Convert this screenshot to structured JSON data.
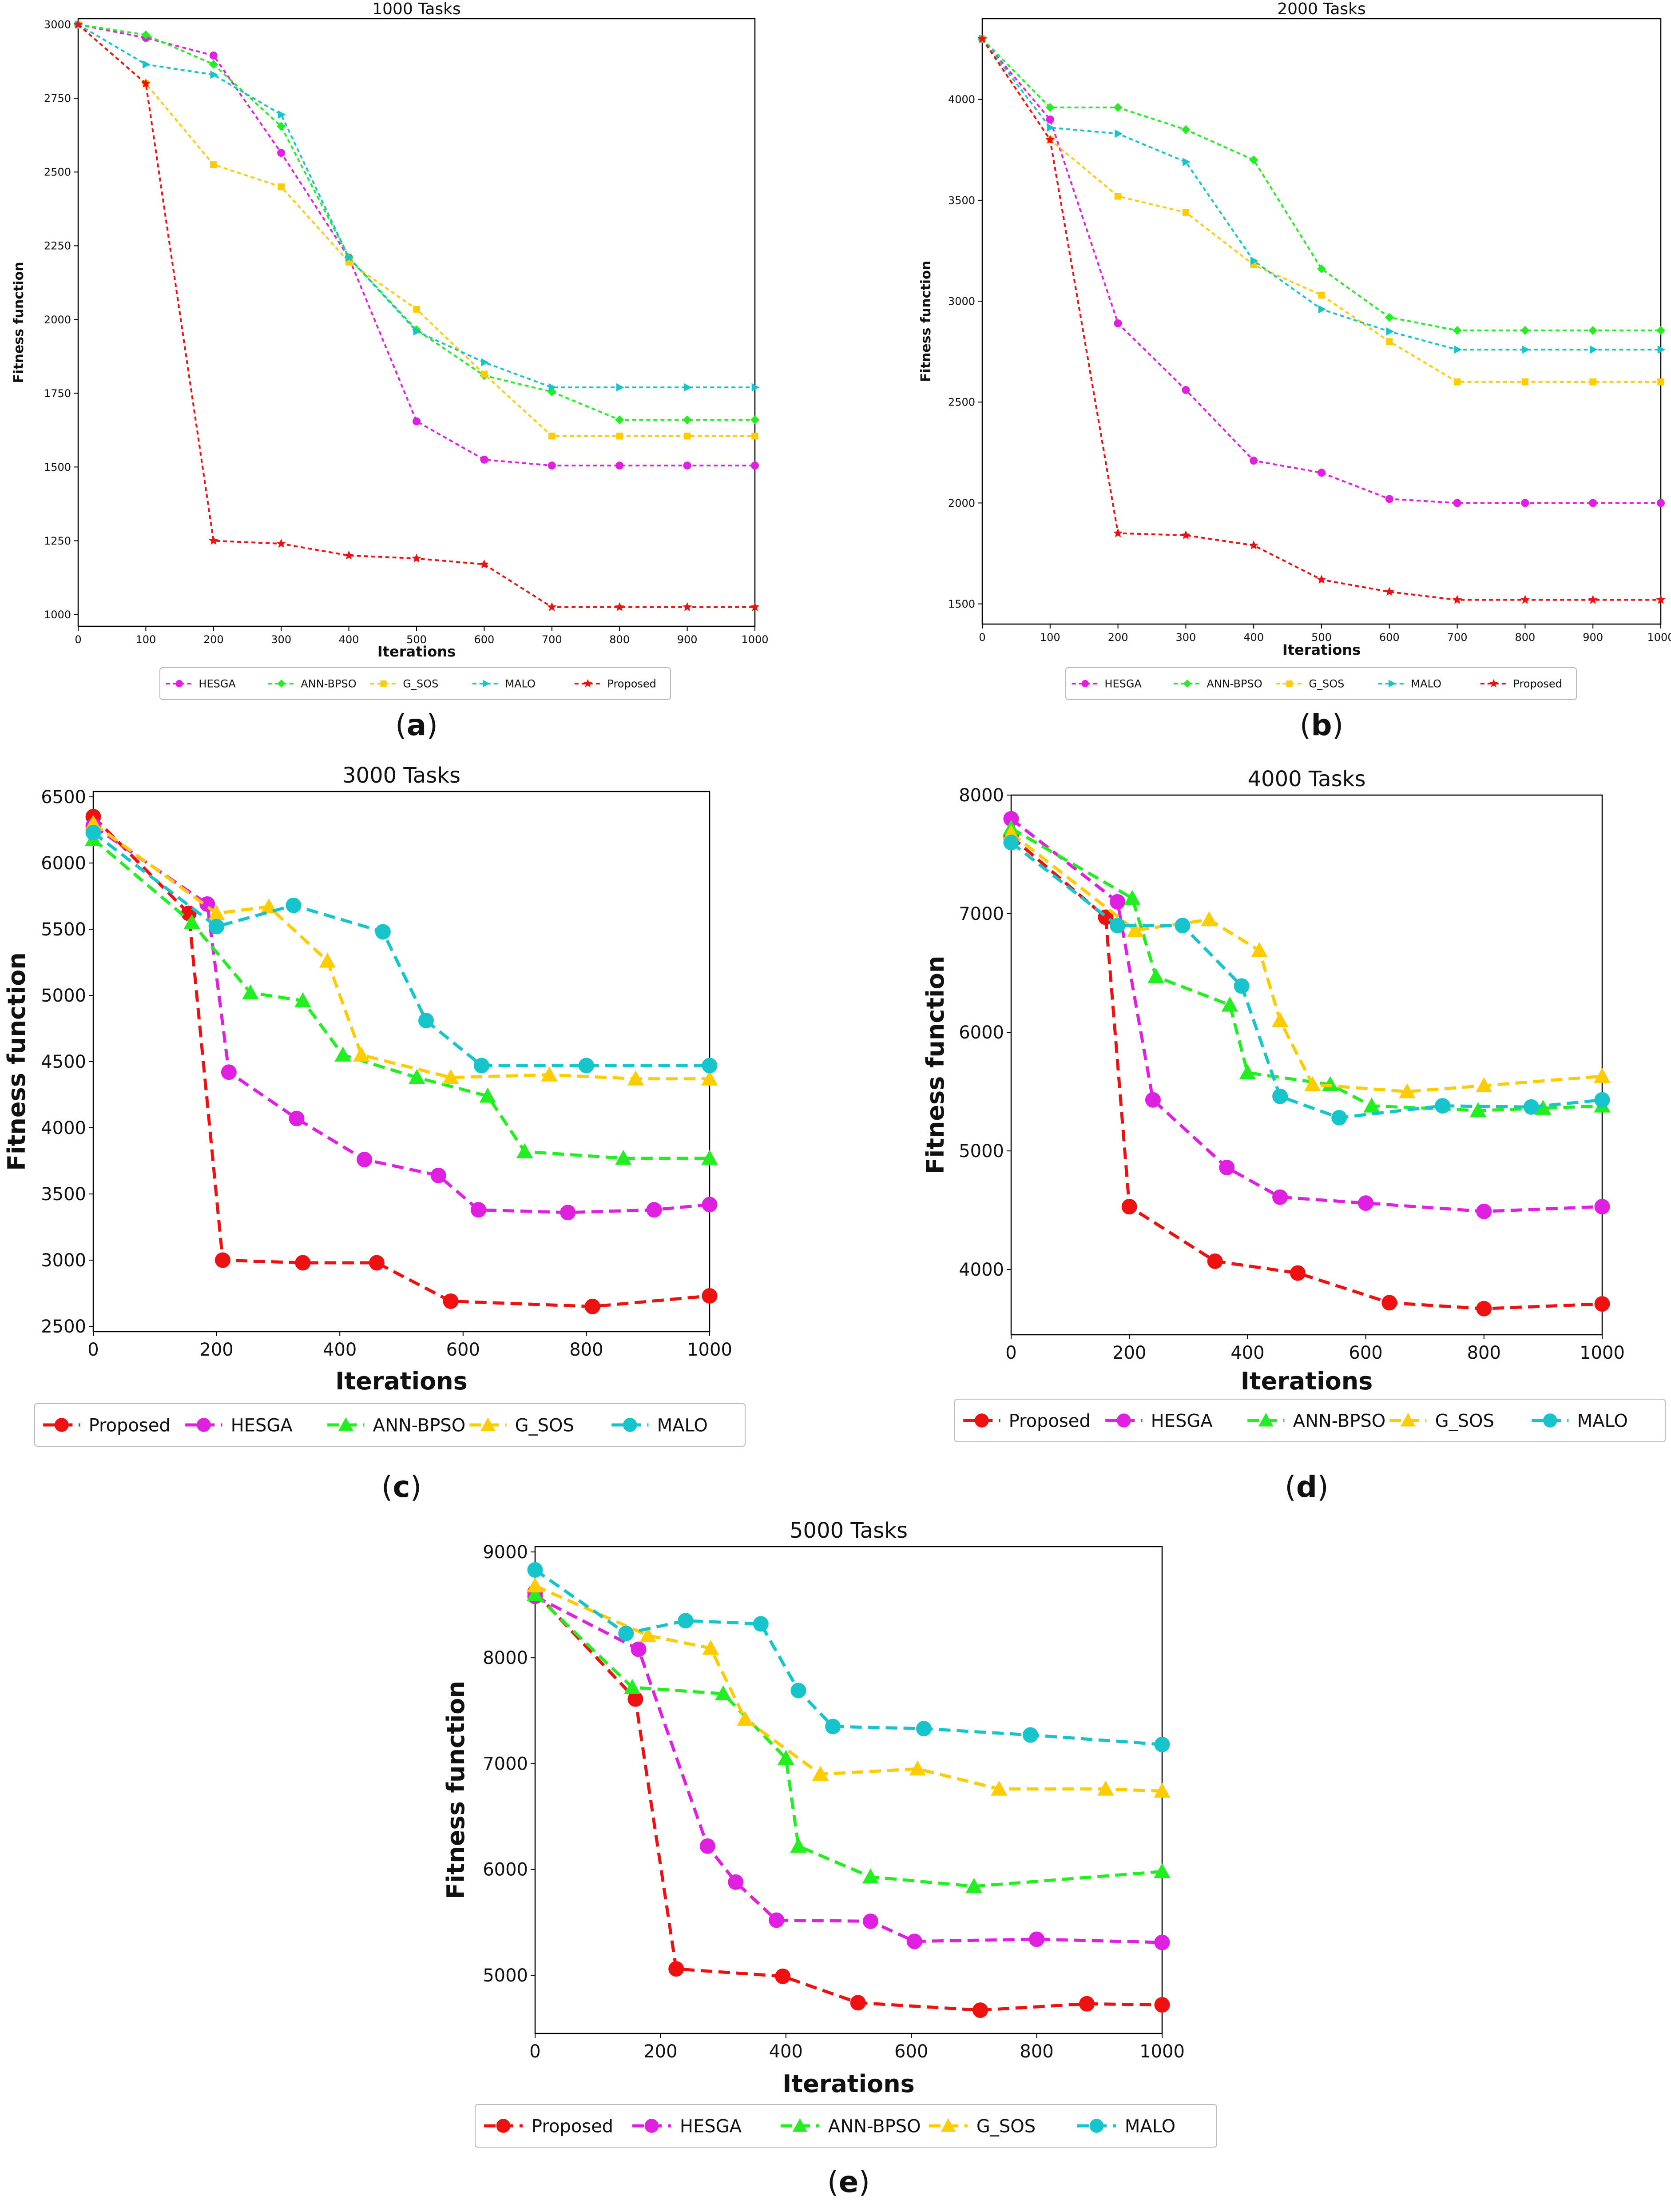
{
  "figure": {
    "colors": {
      "HESGA": "#e020e0",
      "ANN-BPSO": "#22ee22",
      "G_SOS": "#ffcc00",
      "MALO": "#17c4cc",
      "Proposed": "#ee1111"
    },
    "panels": [
      {
        "letter": "a",
        "open": "(",
        "close": ")"
      },
      {
        "letter": "b",
        "open": "(",
        "close": ")"
      },
      {
        "letter": "c",
        "open": "(",
        "close": ")"
      },
      {
        "letter": "d",
        "open": "(",
        "close": ")"
      },
      {
        "letter": "e",
        "open": "(",
        "close": ")"
      }
    ]
  },
  "chart_data": [
    {
      "type": "line",
      "title": "1000 Tasks",
      "xlabel": "Iterations",
      "ylabel": "Fitness function",
      "xlim": [
        0,
        1000
      ],
      "ylim": [
        960,
        3020
      ],
      "xticks": [
        0,
        100,
        200,
        300,
        400,
        500,
        600,
        700,
        800,
        900,
        1000
      ],
      "yticks": [
        1000,
        1250,
        1500,
        1750,
        2000,
        2250,
        2500,
        2750,
        3000
      ],
      "legend_order": [
        "HESGA",
        "ANN-BPSO",
        "G_SOS",
        "MALO",
        "Proposed"
      ],
      "series": [
        {
          "name": "HESGA",
          "marker": "circle",
          "x": [
            0,
            100,
            200,
            300,
            400,
            500,
            600,
            700,
            800,
            900,
            1000
          ],
          "y": [
            3000,
            2955,
            2895,
            2565,
            2210,
            1655,
            1525,
            1505,
            1505,
            1505,
            1505
          ]
        },
        {
          "name": "ANN-BPSO",
          "marker": "diamond",
          "x": [
            0,
            100,
            200,
            300,
            400,
            500,
            600,
            700,
            800,
            900,
            1000
          ],
          "y": [
            3000,
            2965,
            2865,
            2655,
            2210,
            1965,
            1810,
            1755,
            1660,
            1660,
            1660
          ]
        },
        {
          "name": "G_SOS",
          "marker": "square",
          "x": [
            0,
            100,
            200,
            300,
            400,
            500,
            600,
            700,
            800,
            900,
            1000
          ],
          "y": [
            3000,
            2800,
            2525,
            2450,
            2195,
            2035,
            1815,
            1605,
            1605,
            1605,
            1605
          ]
        },
        {
          "name": "MALO",
          "marker": "triangle-right",
          "x": [
            0,
            100,
            200,
            300,
            400,
            500,
            600,
            700,
            800,
            900,
            1000
          ],
          "y": [
            3000,
            2865,
            2830,
            2695,
            2210,
            1960,
            1855,
            1770,
            1770,
            1770,
            1770
          ]
        },
        {
          "name": "Proposed",
          "marker": "star",
          "x": [
            0,
            100,
            200,
            300,
            400,
            500,
            600,
            700,
            800,
            900,
            1000
          ],
          "y": [
            3000,
            2800,
            1250,
            1240,
            1200,
            1190,
            1170,
            1025,
            1025,
            1025,
            1025
          ]
        }
      ]
    },
    {
      "type": "line",
      "title": "2000 Tasks",
      "xlabel": "Iterations",
      "ylabel": "Fitness function",
      "xlim": [
        0,
        1000
      ],
      "ylim": [
        1400,
        4400
      ],
      "xticks": [
        0,
        100,
        200,
        300,
        400,
        500,
        600,
        700,
        800,
        900,
        1000
      ],
      "yticks": [
        1500,
        2000,
        2500,
        3000,
        3500,
        4000
      ],
      "legend_order": [
        "HESGA",
        "ANN-BPSO",
        "G_SOS",
        "MALO",
        "Proposed"
      ],
      "series": [
        {
          "name": "HESGA",
          "marker": "circle",
          "x": [
            0,
            100,
            200,
            300,
            400,
            500,
            600,
            700,
            800,
            900,
            1000
          ],
          "y": [
            4300,
            3900,
            2890,
            2560,
            2210,
            2150,
            2020,
            2000,
            2000,
            2000,
            2000
          ]
        },
        {
          "name": "ANN-BPSO",
          "marker": "diamond",
          "x": [
            0,
            100,
            200,
            300,
            400,
            500,
            600,
            700,
            800,
            900,
            1000
          ],
          "y": [
            4300,
            3960,
            3960,
            3850,
            3700,
            3160,
            2920,
            2855,
            2855,
            2855,
            2855
          ]
        },
        {
          "name": "G_SOS",
          "marker": "square",
          "x": [
            0,
            100,
            200,
            300,
            400,
            500,
            600,
            700,
            800,
            900,
            1000
          ],
          "y": [
            4300,
            3800,
            3520,
            3440,
            3180,
            3030,
            2800,
            2600,
            2600,
            2600,
            2600
          ]
        },
        {
          "name": "MALO",
          "marker": "triangle-right",
          "x": [
            0,
            100,
            200,
            300,
            400,
            500,
            600,
            700,
            800,
            900,
            1000
          ],
          "y": [
            4300,
            3860,
            3830,
            3690,
            3200,
            2960,
            2850,
            2760,
            2760,
            2760,
            2760
          ]
        },
        {
          "name": "Proposed",
          "marker": "star",
          "x": [
            0,
            100,
            200,
            300,
            400,
            500,
            600,
            700,
            800,
            900,
            1000
          ],
          "y": [
            4300,
            3800,
            1850,
            1840,
            1790,
            1620,
            1560,
            1520,
            1520,
            1520,
            1520
          ]
        }
      ]
    },
    {
      "type": "line",
      "title": "3000 Tasks",
      "xlabel": "Iterations",
      "ylabel": "Fitness function",
      "xlim": [
        0,
        1000
      ],
      "ylim": [
        2460,
        6540
      ],
      "xticks": [
        0,
        200,
        400,
        600,
        800,
        1000
      ],
      "yticks": [
        2500,
        3000,
        3500,
        4000,
        4500,
        5000,
        5500,
        6000,
        6500
      ],
      "legend_order": [
        "Proposed",
        "HESGA",
        "ANN-BPSO",
        "G_SOS",
        "MALO"
      ],
      "series": [
        {
          "name": "Proposed",
          "marker": "circle",
          "x": [
            0,
            155,
            210,
            340,
            460,
            580,
            810,
            1000
          ],
          "y": [
            6350,
            5620,
            3000,
            2980,
            2980,
            2690,
            2650,
            2730
          ]
        },
        {
          "name": "HESGA",
          "marker": "circle",
          "x": [
            0,
            185,
            220,
            330,
            440,
            560,
            625,
            770,
            910,
            1000
          ],
          "y": [
            6280,
            5690,
            4420,
            4070,
            3760,
            3640,
            3380,
            3360,
            3380,
            3420
          ]
        },
        {
          "name": "ANN-BPSO",
          "marker": "triangle",
          "x": [
            0,
            160,
            255,
            340,
            405,
            525,
            640,
            700,
            860,
            1000
          ],
          "y": [
            6180,
            5550,
            5020,
            4960,
            4550,
            4380,
            4240,
            3820,
            3770,
            3770
          ]
        },
        {
          "name": "G_SOS",
          "marker": "triangle",
          "x": [
            0,
            200,
            285,
            380,
            435,
            580,
            740,
            880,
            1000
          ],
          "y": [
            6300,
            5620,
            5670,
            5260,
            4550,
            4380,
            4400,
            4370,
            4370
          ]
        },
        {
          "name": "MALO",
          "marker": "circle",
          "x": [
            0,
            200,
            325,
            470,
            540,
            630,
            800,
            1000
          ],
          "y": [
            6230,
            5520,
            5680,
            5480,
            4810,
            4470,
            4470,
            4470
          ]
        }
      ]
    },
    {
      "type": "line",
      "title": "4000 Tasks",
      "xlabel": "Iterations",
      "ylabel": "Fitness function",
      "xlim": [
        0,
        1000
      ],
      "ylim": [
        3450,
        8000
      ],
      "xticks": [
        0,
        200,
        400,
        600,
        800,
        1000
      ],
      "yticks": [
        4000,
        5000,
        6000,
        7000,
        8000
      ],
      "legend_order": [
        "Proposed",
        "HESGA",
        "ANN-BPSO",
        "G_SOS",
        "MALO"
      ],
      "series": [
        {
          "name": "Proposed",
          "marker": "circle",
          "x": [
            0,
            160,
            200,
            345,
            485,
            640,
            800,
            1000
          ],
          "y": [
            7650,
            6970,
            4530,
            4070,
            3970,
            3720,
            3670,
            3710
          ]
        },
        {
          "name": "HESGA",
          "marker": "circle",
          "x": [
            0,
            180,
            240,
            365,
            455,
            600,
            800,
            1000
          ],
          "y": [
            7800,
            7100,
            5430,
            4860,
            4610,
            4560,
            4490,
            4530
          ]
        },
        {
          "name": "ANN-BPSO",
          "marker": "triangle",
          "x": [
            0,
            205,
            245,
            370,
            400,
            540,
            610,
            790,
            900,
            1000
          ],
          "y": [
            7720,
            7130,
            6470,
            6230,
            5660,
            5560,
            5380,
            5340,
            5360,
            5380
          ]
        },
        {
          "name": "G_SOS",
          "marker": "triangle",
          "x": [
            0,
            210,
            335,
            420,
            455,
            510,
            670,
            800,
            1000
          ],
          "y": [
            7680,
            6860,
            6950,
            6690,
            6100,
            5560,
            5500,
            5550,
            5630
          ]
        },
        {
          "name": "MALO",
          "marker": "circle",
          "x": [
            0,
            180,
            290,
            390,
            455,
            555,
            730,
            880,
            1000
          ],
          "y": [
            7600,
            6900,
            6900,
            6390,
            5460,
            5280,
            5380,
            5370,
            5430
          ]
        }
      ]
    },
    {
      "type": "line",
      "title": "5000 Tasks",
      "xlabel": "Iterations",
      "ylabel": "Fitness function",
      "xlim": [
        0,
        1000
      ],
      "ylim": [
        4450,
        9050
      ],
      "xticks": [
        0,
        200,
        400,
        600,
        800,
        1000
      ],
      "yticks": [
        5000,
        6000,
        7000,
        8000,
        9000
      ],
      "legend_order": [
        "Proposed",
        "HESGA",
        "ANN-BPSO",
        "G_SOS",
        "MALO"
      ],
      "series": [
        {
          "name": "Proposed",
          "marker": "circle",
          "x": [
            0,
            160,
            225,
            395,
            515,
            710,
            880,
            1000
          ],
          "y": [
            8620,
            7610,
            5060,
            4990,
            4740,
            4670,
            4730,
            4720
          ]
        },
        {
          "name": "HESGA",
          "marker": "circle",
          "x": [
            0,
            165,
            275,
            320,
            385,
            535,
            605,
            800,
            1000
          ],
          "y": [
            8580,
            8080,
            6220,
            5880,
            5520,
            5510,
            5320,
            5340,
            5310
          ]
        },
        {
          "name": "ANN-BPSO",
          "marker": "triangle",
          "x": [
            0,
            155,
            300,
            400,
            420,
            535,
            700,
            1000
          ],
          "y": [
            8600,
            7720,
            7660,
            7050,
            6220,
            5930,
            5840,
            5980
          ]
        },
        {
          "name": "G_SOS",
          "marker": "triangle",
          "x": [
            0,
            180,
            280,
            335,
            455,
            610,
            740,
            910,
            1000
          ],
          "y": [
            8680,
            8210,
            8090,
            7420,
            6900,
            6950,
            6760,
            6760,
            6740
          ]
        },
        {
          "name": "MALO",
          "marker": "circle",
          "x": [
            0,
            145,
            240,
            360,
            420,
            475,
            620,
            790,
            1000
          ],
          "y": [
            8830,
            8230,
            8350,
            8320,
            7690,
            7350,
            7330,
            7270,
            7180
          ]
        }
      ]
    }
  ]
}
